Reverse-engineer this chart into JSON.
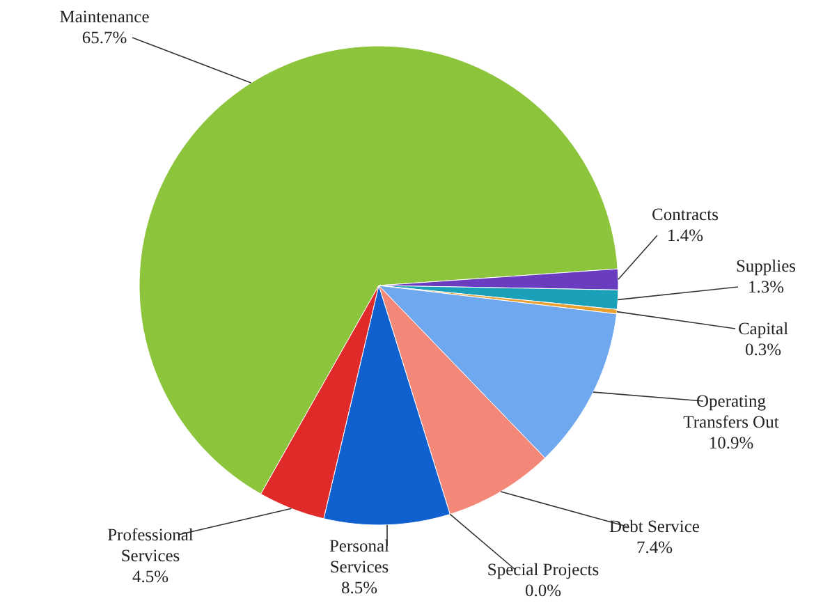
{
  "chart_data": {
    "type": "pie",
    "categories": [
      "Maintenance",
      "Contracts",
      "Supplies",
      "Capital",
      "Operating Transfers Out",
      "Debt Service",
      "Special Projects",
      "Personal Services",
      "Professional Services"
    ],
    "values": [
      65.7,
      1.4,
      1.3,
      0.3,
      10.9,
      7.4,
      0.0,
      8.5,
      4.5
    ],
    "value_labels": [
      "65.7%",
      "1.4%",
      "1.3%",
      "0.3%",
      "10.9%",
      "7.4%",
      "0.0%",
      "8.5%",
      "4.5%"
    ],
    "colors": [
      "#8cc43c",
      "#6a3cc0",
      "#1aa0b8",
      "#e8a030",
      "#70a8f0",
      "#f48878",
      "#3050a0",
      "#1060d0",
      "#e02a2a"
    ]
  }
}
